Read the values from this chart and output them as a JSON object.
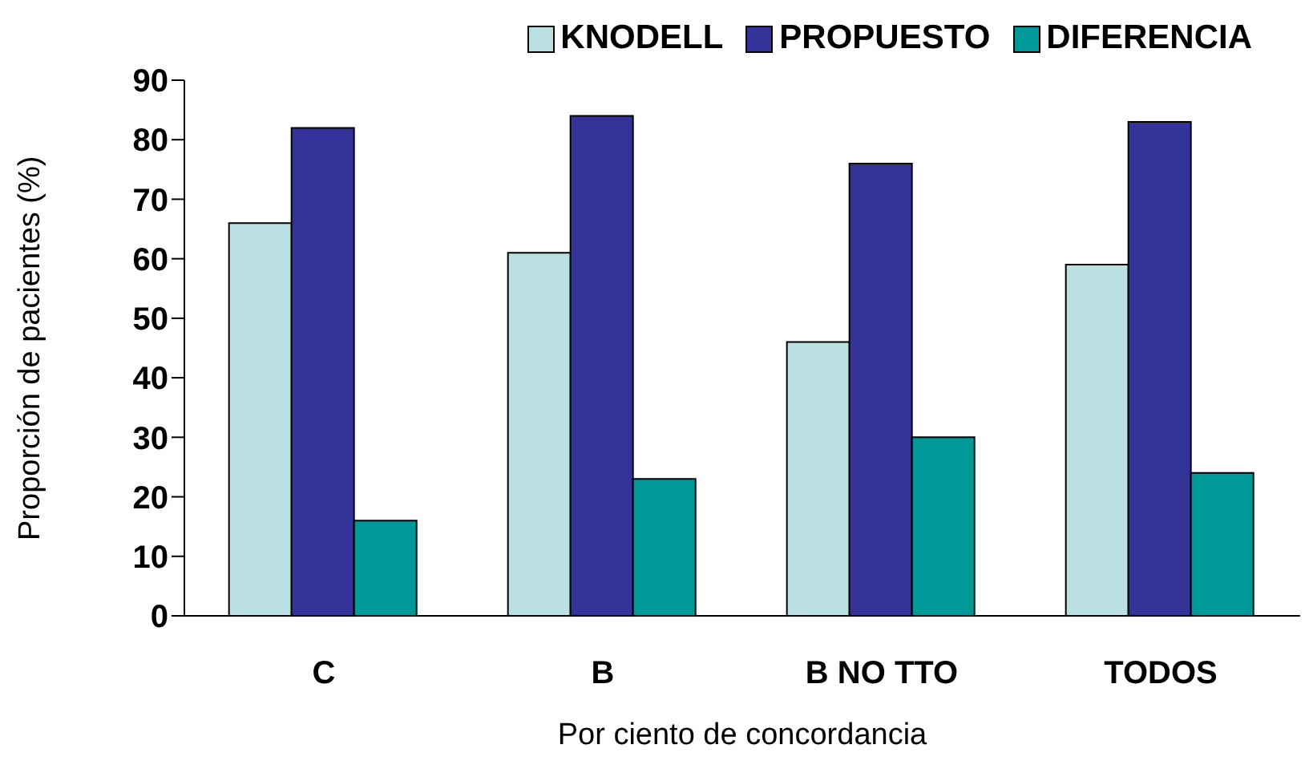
{
  "chart_data": {
    "type": "bar",
    "xlabel": "Por ciento de concordancia",
    "ylabel": "Proporción de pacientes (%)",
    "categories": [
      "C",
      "B",
      "B NO TTO",
      "TODOS"
    ],
    "series": [
      {
        "name": "KNODELL",
        "color": "#bbe0e3",
        "values": [
          66,
          61,
          46,
          59
        ]
      },
      {
        "name": "PROPUESTO",
        "color": "#333399",
        "values": [
          82,
          84,
          76,
          83
        ]
      },
      {
        "name": "DIFERENCIA",
        "color": "#009999",
        "values": [
          16,
          23,
          30,
          24
        ]
      }
    ],
    "ylim": [
      0,
      90
    ],
    "yticks": [
      0,
      10,
      20,
      30,
      40,
      50,
      60,
      70,
      80,
      90
    ],
    "grid": false,
    "legend": "top right"
  }
}
